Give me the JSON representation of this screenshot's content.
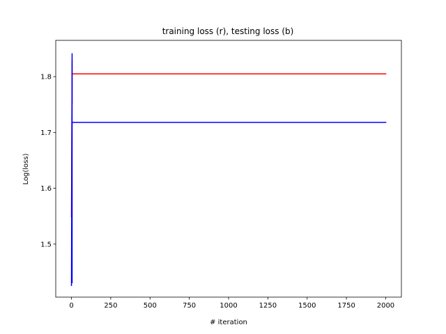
{
  "chart_data": {
    "type": "line",
    "title": "training loss (r), testing loss (b)",
    "xlabel": "# iteration",
    "ylabel": "Log(loss)",
    "xlim": [
      -100,
      2100
    ],
    "ylim": [
      1.405,
      1.865
    ],
    "xticks": [
      0,
      250,
      500,
      750,
      1000,
      1250,
      1500,
      1750,
      2000
    ],
    "xtick_labels": [
      "0",
      "250",
      "500",
      "750",
      "1000",
      "1250",
      "1500",
      "1750",
      "2000"
    ],
    "yticks": [
      1.5,
      1.6,
      1.7,
      1.8
    ],
    "ytick_labels": [
      "1.5",
      "1.6",
      "1.7",
      "1.8"
    ],
    "grid": false,
    "series": [
      {
        "color": "#ff0000",
        "x": [
          0,
          0.5,
          1,
          2,
          3,
          4,
          6,
          10,
          2000
        ],
        "y": [
          1.548,
          1.83,
          1.75,
          1.805,
          1.804,
          1.806,
          1.805,
          1.805,
          1.805
        ]
      },
      {
        "color": "#0000ff",
        "x": [
          0,
          0.5,
          1,
          2,
          3,
          4,
          6,
          10,
          2000
        ],
        "y": [
          1.425,
          1.842,
          1.43,
          1.705,
          1.72,
          1.717,
          1.718,
          1.718,
          1.718
        ]
      }
    ]
  }
}
